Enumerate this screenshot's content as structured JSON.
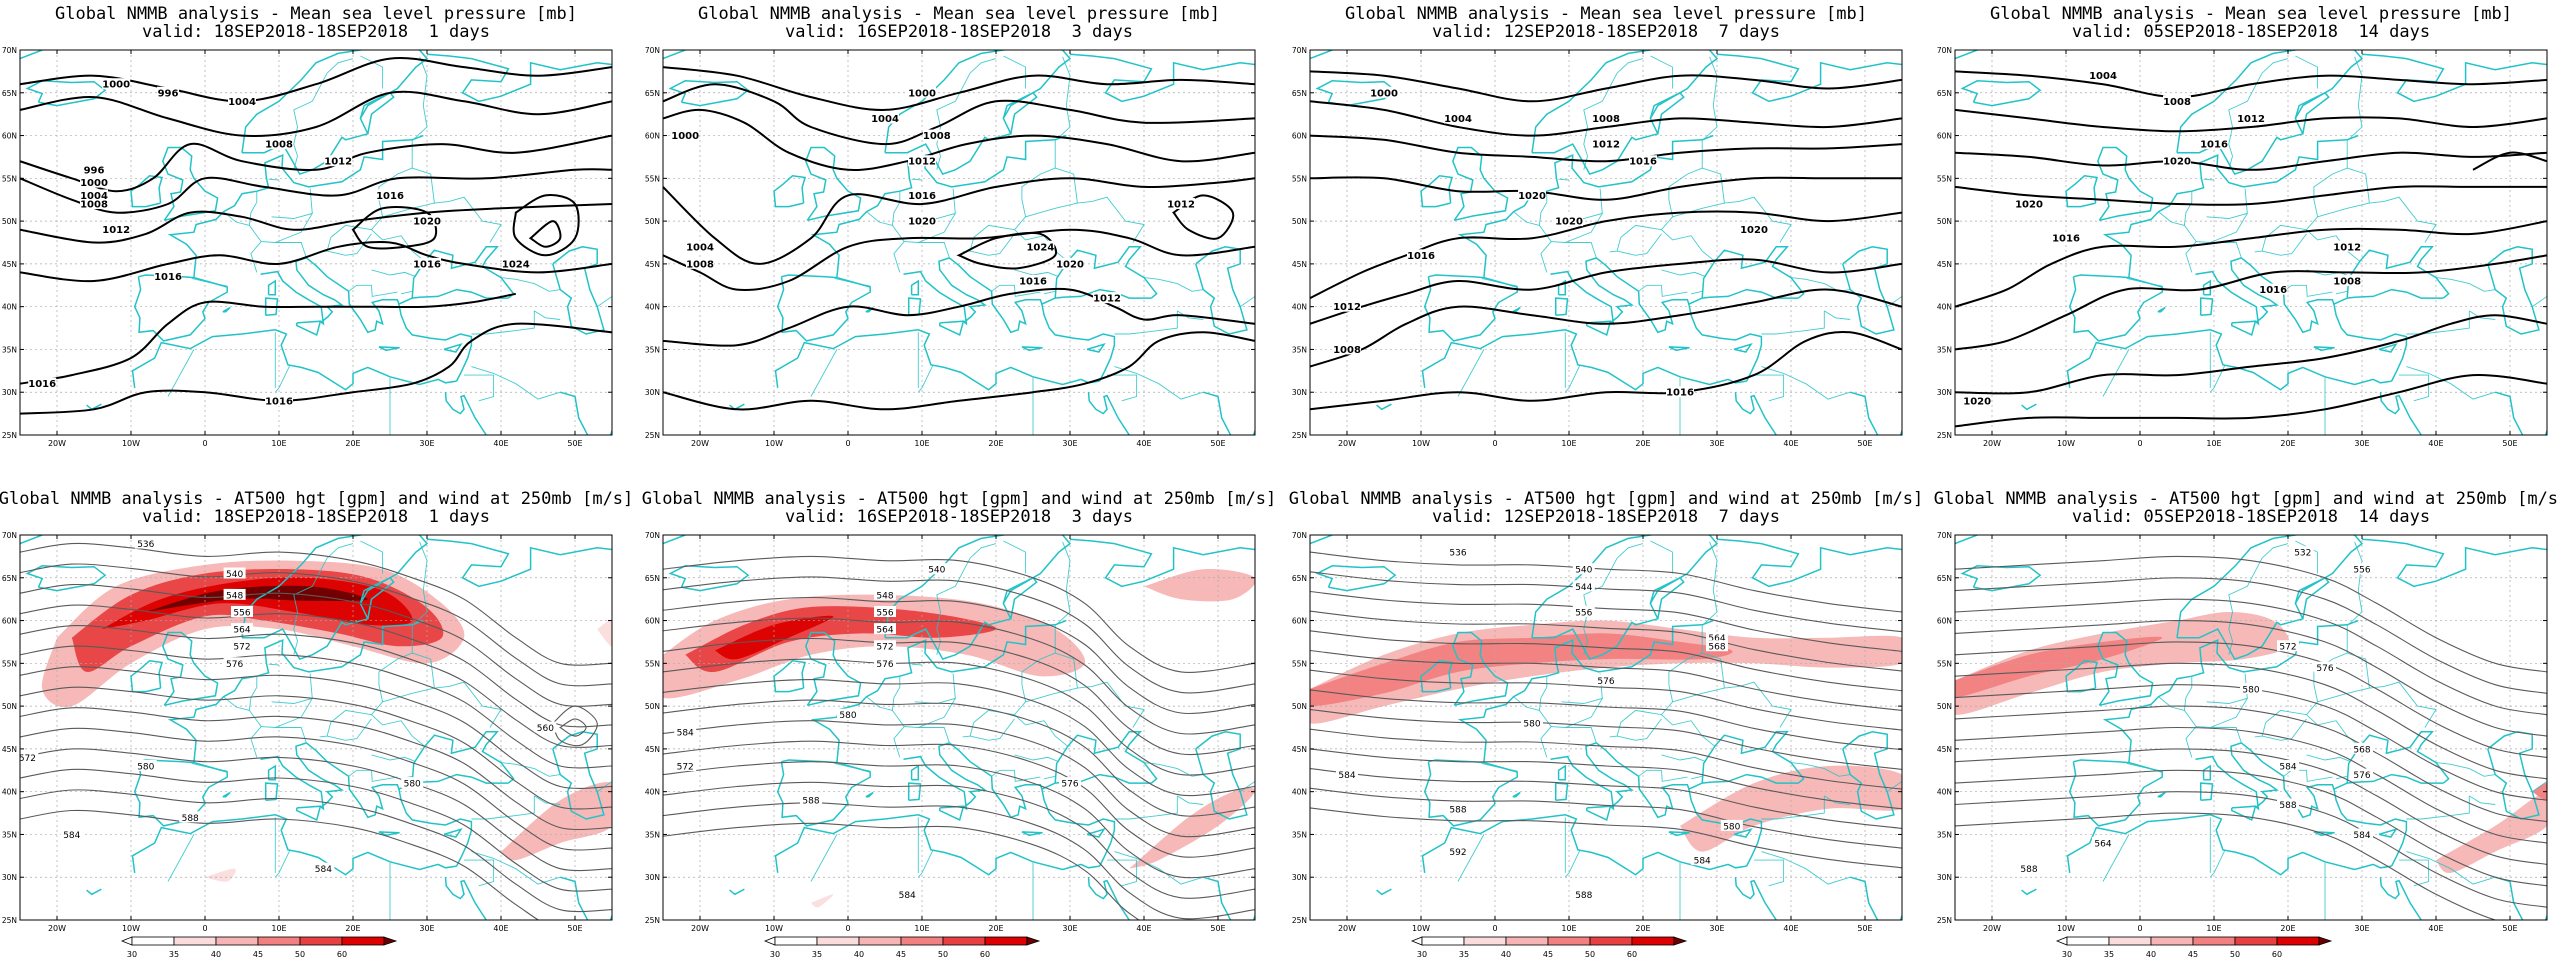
{
  "colors": {
    "coast": "#22c3c8",
    "contour": "#000000",
    "contour_upper": "#5a5a5a",
    "grid": "#aaaaaa",
    "jet": [
      "#ffffff",
      "#fbdcdc",
      "#f7b4b4",
      "#f28080",
      "#e84040",
      "#dd0000",
      "#6b0000"
    ]
  },
  "top_row": [
    {
      "title_line1": "Global NMMB analysis - Mean sea level pressure [mb]",
      "title_line2": "valid: 18SEP2018-18SEP2018  1 days"
    },
    {
      "title_line1": "Global NMMB analysis - Mean sea level pressure [mb]",
      "title_line2": "valid: 16SEP2018-18SEP2018  3 days"
    },
    {
      "title_line1": "Global NMMB analysis - Mean sea level pressure [mb]",
      "title_line2": "valid: 12SEP2018-18SEP2018  7 days"
    },
    {
      "title_line1": "Global NMMB analysis - Mean sea level pressure [mb]",
      "title_line2": "valid: 05SEP2018-18SEP2018  14 days"
    }
  ],
  "bottom_row": [
    {
      "title_line1": "Global NMMB analysis - AT500 hgt [gpm] and wind at 250mb [m/s]",
      "title_line2": "valid: 18SEP2018-18SEP2018  1 days"
    },
    {
      "title_line1": "Global NMMB analysis - AT500 hgt [gpm] and wind at 250mb [m/s]",
      "title_line2": "valid: 16SEP2018-18SEP2018  3 days"
    },
    {
      "title_line1": "Global NMMB analysis - AT500 hgt [gpm] and wind at 250mb [m/s]",
      "title_line2": "valid: 12SEP2018-18SEP2018  7 days"
    },
    {
      "title_line1": "Global NMMB analysis - AT500 hgt [gpm] and wind at 250mb [m/s]",
      "title_line2": "valid: 05SEP2018-18SEP2018  14 days"
    }
  ],
  "axes": {
    "lon_labels": [
      "20W",
      "10W",
      "0",
      "10E",
      "20E",
      "30E",
      "40E",
      "50E"
    ],
    "lat_labels": [
      "70N",
      "65N",
      "60N",
      "55N",
      "50N",
      "45N",
      "40N",
      "35N",
      "30N",
      "25N"
    ]
  },
  "top_contour_labels": [
    [
      "1000",
      "996",
      "1004",
      "1008",
      "1012",
      "1016",
      "1020",
      "1024",
      "1016",
      "1016",
      "1012",
      "1008",
      "1000",
      "996",
      "1004",
      "1016",
      "1016"
    ],
    [
      "1000",
      "1004",
      "1008",
      "1012",
      "1016",
      "1020",
      "1024",
      "1020",
      "1016",
      "1012",
      "1008",
      "1004",
      "1000",
      "1012"
    ],
    [
      "1000",
      "1004",
      "1008",
      "1012",
      "1016",
      "1020",
      "1020",
      "1016",
      "1012",
      "1008",
      "1020",
      "1016"
    ],
    [
      "1004",
      "1008",
      "1012",
      "1016",
      "1020",
      "1020",
      "1016",
      "1012",
      "1008",
      "1020",
      "1016"
    ]
  ],
  "bottom_contour_labels": [
    [
      "536",
      "540",
      "548",
      "556",
      "564",
      "572",
      "576",
      "580",
      "584",
      "588",
      "584",
      "580",
      "572",
      "560"
    ],
    [
      "540",
      "548",
      "556",
      "564",
      "572",
      "576",
      "580",
      "584",
      "588",
      "584",
      "576",
      "572"
    ],
    [
      "536",
      "540",
      "544",
      "556",
      "564",
      "568",
      "576",
      "580",
      "584",
      "588",
      "592",
      "588",
      "584",
      "580"
    ],
    [
      "532",
      "556",
      "572",
      "576",
      "580",
      "584",
      "588",
      "584",
      "576",
      "568",
      "564",
      "588"
    ]
  ],
  "colorbar": {
    "labels": [
      "30",
      "35",
      "40",
      "45",
      "50",
      "60"
    ]
  }
}
